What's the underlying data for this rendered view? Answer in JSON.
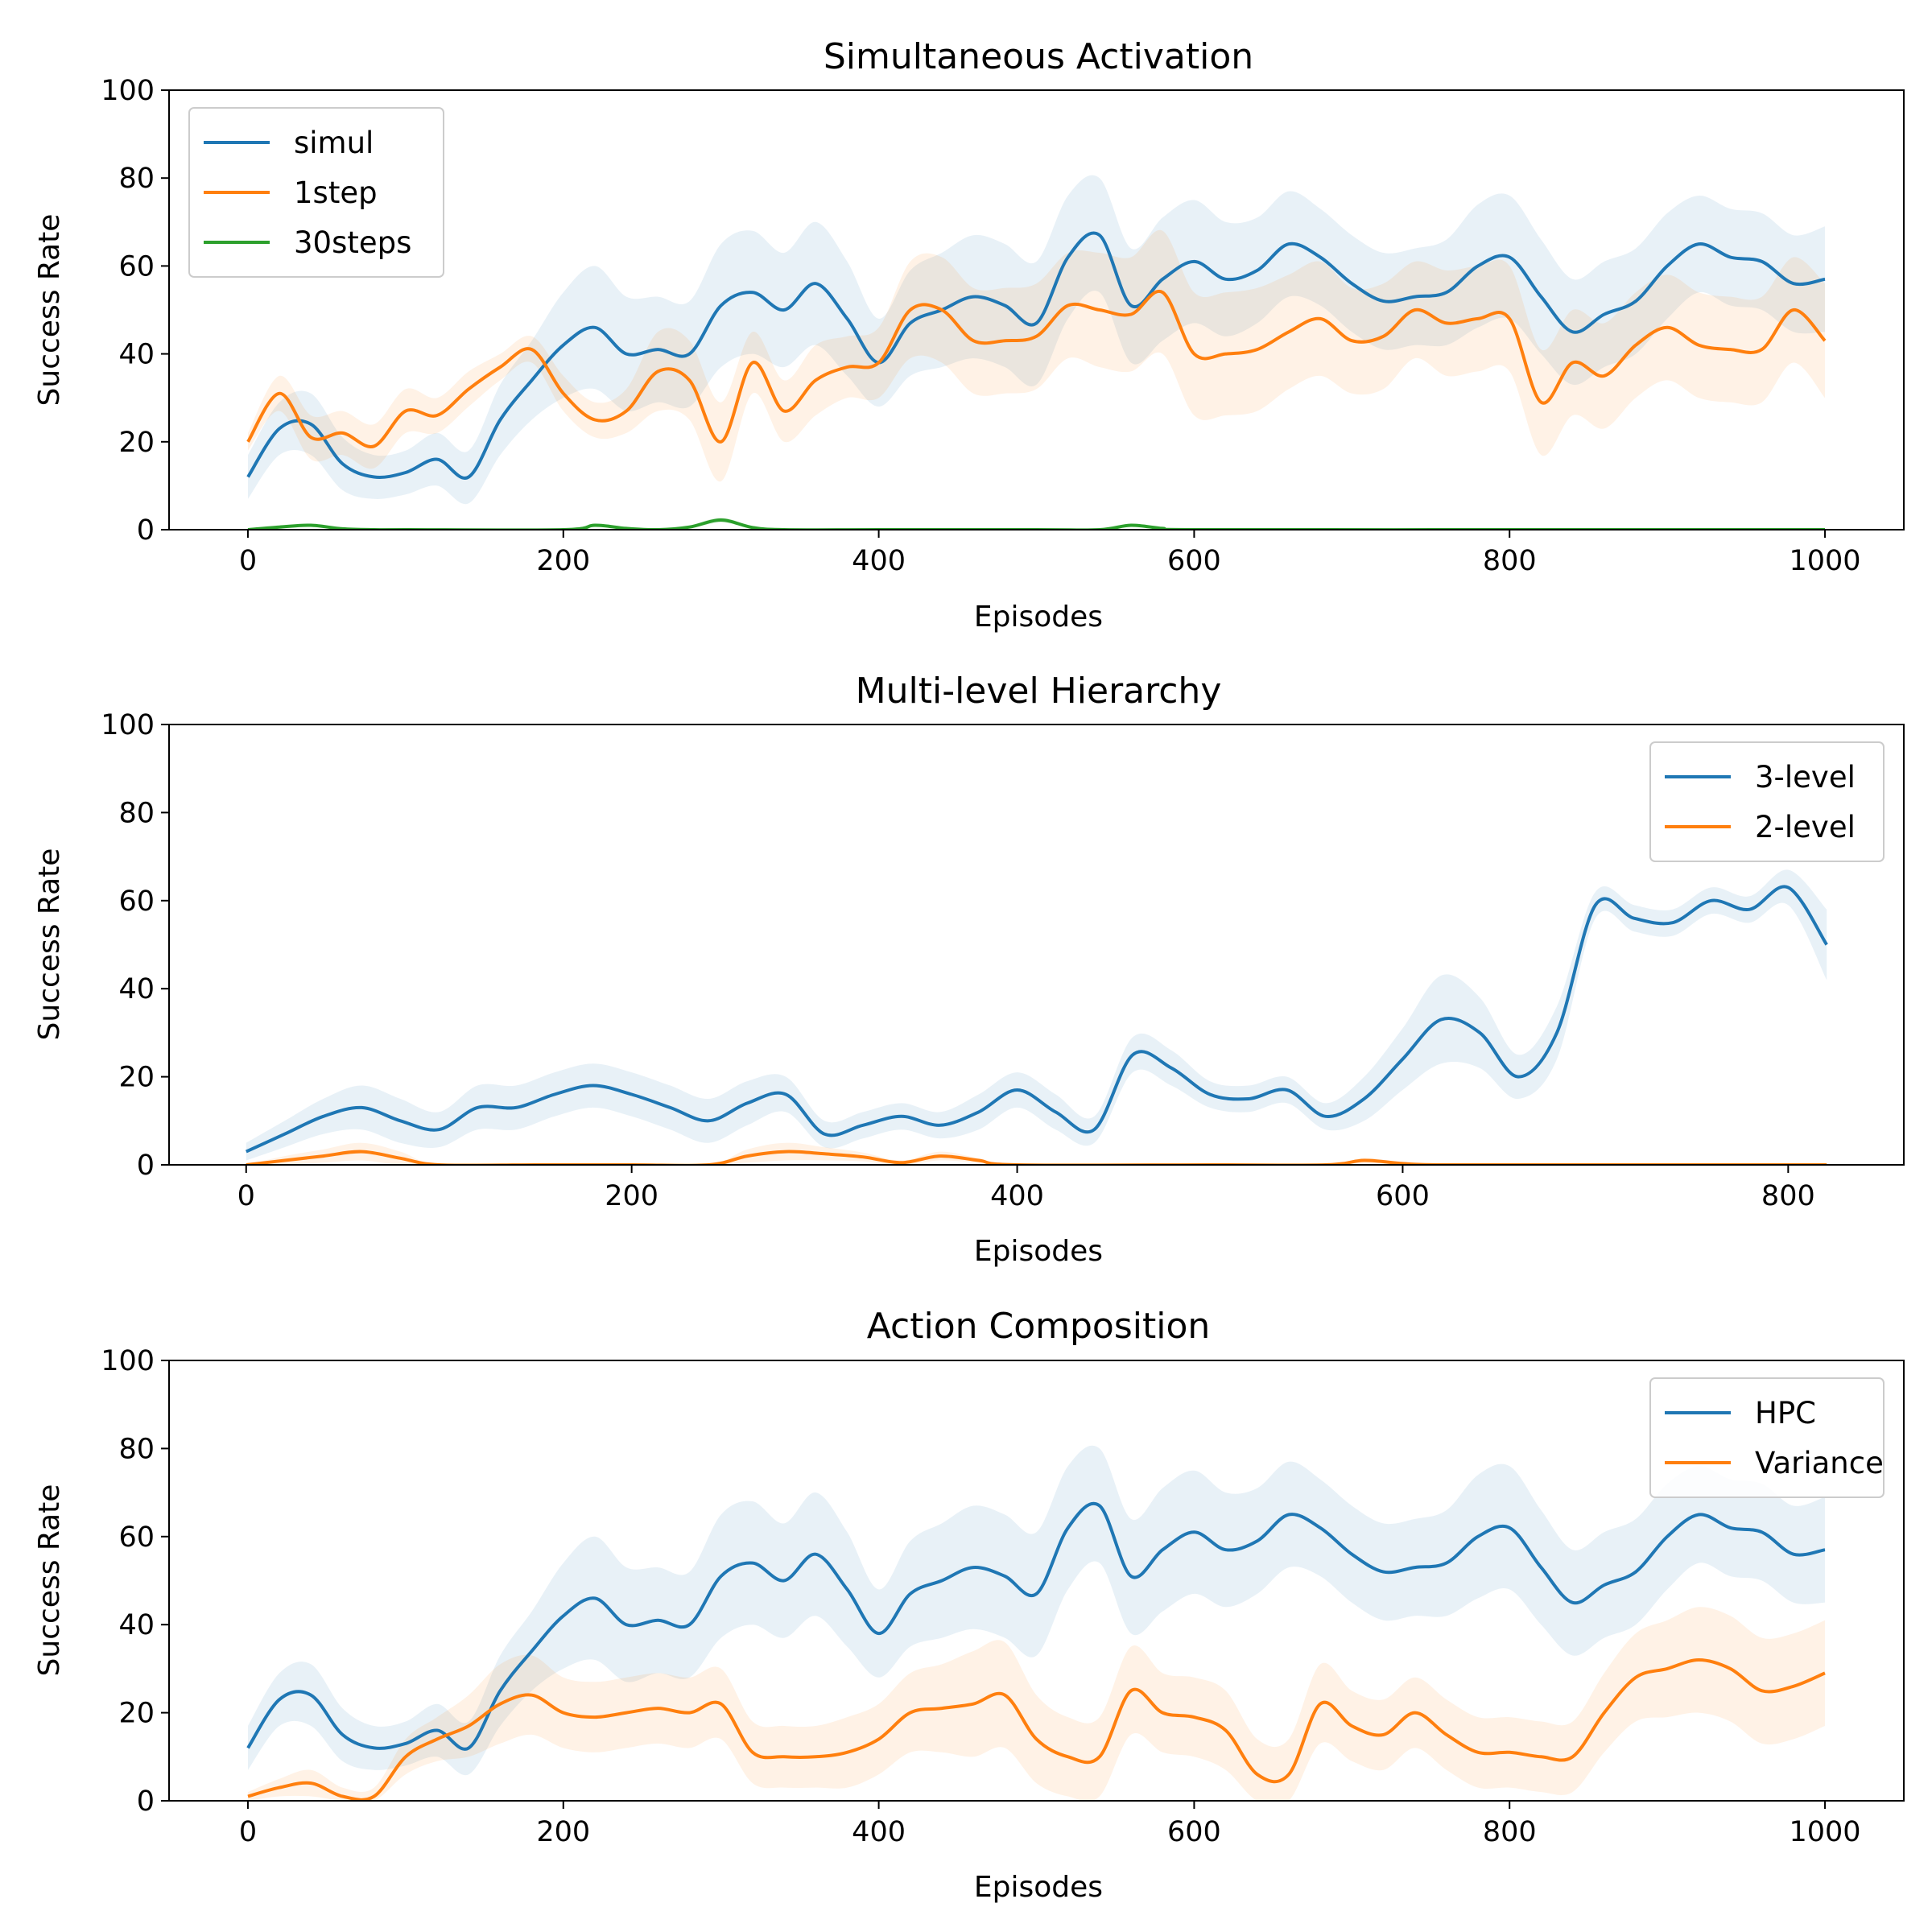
{
  "chart_data": [
    {
      "type": "line",
      "title": "Simultaneous Activation",
      "xlabel": "Episodes",
      "ylabel": "Success Rate",
      "xlim": [
        -50,
        1050
      ],
      "ylim": [
        0,
        100
      ],
      "xticks": [
        0,
        200,
        400,
        600,
        800,
        1000
      ],
      "yticks": [
        0,
        20,
        40,
        60,
        80,
        100
      ],
      "legend": "top-left",
      "shaded_bands": true,
      "series": [
        {
          "name": "simul",
          "color": "#1f77b4",
          "x": [
            0,
            20,
            40,
            60,
            80,
            100,
            120,
            140,
            160,
            180,
            200,
            220,
            240,
            260,
            280,
            300,
            320,
            340,
            360,
            380,
            400,
            420,
            440,
            460,
            480,
            500,
            520,
            540,
            560,
            580,
            600,
            620,
            640,
            660,
            680,
            700,
            720,
            740,
            760,
            780,
            800,
            820,
            840,
            860,
            880,
            900,
            920,
            940,
            960,
            980,
            1000
          ],
          "y": [
            12,
            23,
            24,
            15,
            12,
            13,
            16,
            12,
            25,
            34,
            42,
            46,
            40,
            41,
            40,
            51,
            54,
            50,
            56,
            48,
            38,
            47,
            50,
            53,
            51,
            47,
            62,
            67,
            51,
            57,
            61,
            57,
            59,
            65,
            62,
            56,
            52,
            53,
            54,
            60,
            62,
            53,
            45,
            49,
            52,
            60,
            65,
            62,
            61,
            56,
            57
          ],
          "band": [
            5,
            6,
            7,
            6,
            5,
            5,
            6,
            6,
            8,
            9,
            12,
            14,
            13,
            12,
            12,
            14,
            14,
            13,
            14,
            13,
            10,
            12,
            13,
            14,
            14,
            14,
            14,
            13,
            13,
            14,
            14,
            13,
            12,
            12,
            11,
            11,
            11,
            11,
            12,
            14,
            14,
            13,
            12,
            12,
            12,
            12,
            11,
            11,
            11,
            11,
            12
          ]
        },
        {
          "name": "1step",
          "color": "#ff7f0e",
          "x": [
            0,
            20,
            40,
            60,
            80,
            100,
            120,
            140,
            160,
            180,
            200,
            220,
            240,
            260,
            280,
            300,
            320,
            340,
            360,
            380,
            400,
            420,
            440,
            460,
            480,
            500,
            520,
            540,
            560,
            580,
            600,
            620,
            640,
            660,
            680,
            700,
            720,
            740,
            760,
            780,
            800,
            820,
            840,
            860,
            880,
            900,
            920,
            940,
            960,
            980,
            1000
          ],
          "y": [
            20,
            31,
            21,
            22,
            19,
            27,
            26,
            32,
            37,
            41,
            31,
            25,
            27,
            36,
            34,
            20,
            38,
            27,
            34,
            37,
            38,
            50,
            50,
            43,
            43,
            44,
            51,
            50,
            49,
            54,
            40,
            40,
            41,
            45,
            48,
            43,
            44,
            50,
            47,
            48,
            48,
            29,
            38,
            35,
            42,
            46,
            42,
            41,
            41,
            50,
            43
          ],
          "band": [
            2,
            4,
            5,
            5,
            5,
            5,
            4,
            4,
            3,
            3,
            4,
            4,
            5,
            9,
            9,
            9,
            7,
            7,
            8,
            7,
            8,
            11,
            12,
            12,
            12,
            12,
            12,
            13,
            13,
            14,
            14,
            14,
            14,
            13,
            13,
            12,
            12,
            11,
            12,
            12,
            12,
            12,
            12,
            12,
            12,
            12,
            12,
            12,
            12,
            12,
            13
          ]
        },
        {
          "name": "30steps",
          "color": "#2ca02c",
          "x": [
            0,
            20,
            40,
            60,
            80,
            100,
            200,
            220,
            240,
            260,
            280,
            300,
            320,
            340,
            400,
            500,
            540,
            560,
            580,
            600,
            800,
            1000
          ],
          "y": [
            0,
            0.6,
            1,
            0.2,
            0,
            0,
            0,
            1,
            0.3,
            0,
            0.6,
            2.2,
            0.5,
            0,
            0,
            0,
            0,
            1,
            0.3,
            0,
            0,
            0
          ],
          "band": [
            0,
            0.3,
            0.4,
            0.2,
            0,
            0,
            0,
            0.4,
            0.2,
            0,
            0.3,
            0.6,
            0.2,
            0,
            0,
            0,
            0,
            0.4,
            0.2,
            0,
            0,
            0
          ]
        }
      ]
    },
    {
      "type": "line",
      "title": "Multi-level Hierarchy",
      "xlabel": "Episodes",
      "ylabel": "Success Rate",
      "xlim": [
        -40,
        860
      ],
      "ylim": [
        0,
        100
      ],
      "xticks": [
        0,
        200,
        400,
        600,
        800
      ],
      "yticks": [
        0,
        20,
        40,
        60,
        80,
        100
      ],
      "legend": "top-right",
      "shaded_bands": true,
      "series": [
        {
          "name": "3-level",
          "color": "#1f77b4",
          "x": [
            0,
            20,
            40,
            60,
            80,
            100,
            120,
            140,
            160,
            180,
            200,
            220,
            240,
            260,
            280,
            300,
            320,
            340,
            360,
            380,
            400,
            420,
            440,
            460,
            480,
            500,
            520,
            540,
            560,
            580,
            600,
            620,
            640,
            660,
            680,
            700,
            720,
            740,
            760,
            780,
            800,
            820
          ],
          "y": [
            3,
            7,
            11,
            13,
            10,
            8,
            13,
            13,
            16,
            18,
            16,
            13,
            10,
            14,
            16,
            7,
            9,
            11,
            9,
            12,
            17,
            12,
            8,
            25,
            22,
            16,
            15,
            17,
            11,
            15,
            24,
            33,
            30,
            20,
            30,
            59,
            56,
            55,
            60,
            58,
            63,
            50
          ],
          "band": [
            2,
            3,
            4,
            5,
            5,
            4,
            5,
            5,
            5,
            5,
            5,
            5,
            5,
            5,
            4,
            3,
            3,
            3,
            3,
            4,
            4,
            4,
            3,
            4,
            4,
            3,
            3,
            3,
            3,
            5,
            7,
            10,
            8,
            5,
            6,
            3,
            3,
            3,
            3,
            3,
            4,
            8
          ]
        },
        {
          "name": "2-level",
          "color": "#ff7f0e",
          "x": [
            0,
            20,
            40,
            60,
            80,
            100,
            150,
            200,
            240,
            260,
            280,
            300,
            320,
            340,
            360,
            380,
            400,
            500,
            560,
            580,
            600,
            620,
            700,
            820
          ],
          "y": [
            0,
            1,
            2,
            3,
            1.5,
            0,
            0,
            0,
            0,
            2,
            3,
            2.5,
            1.8,
            0.5,
            2,
            1,
            0,
            0,
            0,
            1,
            0.3,
            0,
            0,
            0
          ],
          "band": [
            0,
            1,
            1.5,
            2,
            1.5,
            0,
            0,
            0,
            0,
            1.5,
            2,
            1.5,
            1,
            0.5,
            1,
            0.5,
            0,
            0,
            0,
            0.6,
            0.2,
            0,
            0,
            0
          ]
        }
      ]
    },
    {
      "type": "line",
      "title": "Action Composition",
      "xlabel": "Episodes",
      "ylabel": "Success Rate",
      "xlim": [
        -50,
        1050
      ],
      "ylim": [
        0,
        100
      ],
      "xticks": [
        0,
        200,
        400,
        600,
        800,
        1000
      ],
      "yticks": [
        0,
        20,
        40,
        60,
        80,
        100
      ],
      "legend": "top-right",
      "shaded_bands": true,
      "series": [
        {
          "name": "HPC",
          "color": "#1f77b4",
          "x": [
            0,
            20,
            40,
            60,
            80,
            100,
            120,
            140,
            160,
            180,
            200,
            220,
            240,
            260,
            280,
            300,
            320,
            340,
            360,
            380,
            400,
            420,
            440,
            460,
            480,
            500,
            520,
            540,
            560,
            580,
            600,
            620,
            640,
            660,
            680,
            700,
            720,
            740,
            760,
            780,
            800,
            820,
            840,
            860,
            880,
            900,
            920,
            940,
            960,
            980,
            1000
          ],
          "y": [
            12,
            23,
            24,
            15,
            12,
            13,
            16,
            12,
            25,
            34,
            42,
            46,
            40,
            41,
            40,
            51,
            54,
            50,
            56,
            48,
            38,
            47,
            50,
            53,
            51,
            47,
            62,
            67,
            51,
            57,
            61,
            57,
            59,
            65,
            62,
            56,
            52,
            53,
            54,
            60,
            62,
            53,
            45,
            49,
            52,
            60,
            65,
            62,
            61,
            56,
            57
          ],
          "band": [
            5,
            6,
            7,
            6,
            5,
            5,
            6,
            6,
            8,
            9,
            12,
            14,
            13,
            12,
            12,
            14,
            14,
            13,
            14,
            13,
            10,
            12,
            13,
            14,
            14,
            14,
            14,
            13,
            13,
            14,
            14,
            13,
            12,
            12,
            11,
            11,
            11,
            11,
            12,
            14,
            14,
            13,
            12,
            12,
            12,
            12,
            11,
            11,
            11,
            11,
            12
          ]
        },
        {
          "name": "Variance",
          "color": "#ff7f0e",
          "x": [
            0,
            20,
            40,
            60,
            80,
            100,
            120,
            140,
            160,
            180,
            200,
            220,
            240,
            260,
            280,
            300,
            320,
            340,
            360,
            380,
            400,
            420,
            440,
            460,
            480,
            500,
            520,
            540,
            560,
            580,
            600,
            620,
            640,
            660,
            680,
            700,
            720,
            740,
            760,
            780,
            800,
            820,
            840,
            860,
            880,
            900,
            920,
            940,
            960,
            980,
            1000
          ],
          "y": [
            1,
            3,
            4,
            1,
            1,
            10,
            14,
            17,
            22,
            24,
            20,
            19,
            20,
            21,
            20,
            22,
            11,
            10,
            10,
            11,
            14,
            20,
            21,
            22,
            24,
            14,
            10,
            10,
            25,
            20,
            19,
            16,
            6,
            6,
            22,
            17,
            15,
            20,
            15,
            11,
            11,
            10,
            10,
            20,
            28,
            30,
            32,
            30,
            25,
            26,
            29
          ],
          "band": [
            1,
            2,
            3,
            2,
            2,
            4,
            5,
            7,
            9,
            9,
            8,
            8,
            8,
            8,
            8,
            8,
            7,
            7,
            7,
            8,
            8,
            9,
            10,
            12,
            12,
            10,
            9,
            9,
            10,
            9,
            9,
            9,
            8,
            8,
            9,
            8,
            8,
            8,
            8,
            8,
            8,
            8,
            8,
            9,
            10,
            11,
            12,
            12,
            12,
            12,
            12
          ]
        }
      ]
    }
  ]
}
